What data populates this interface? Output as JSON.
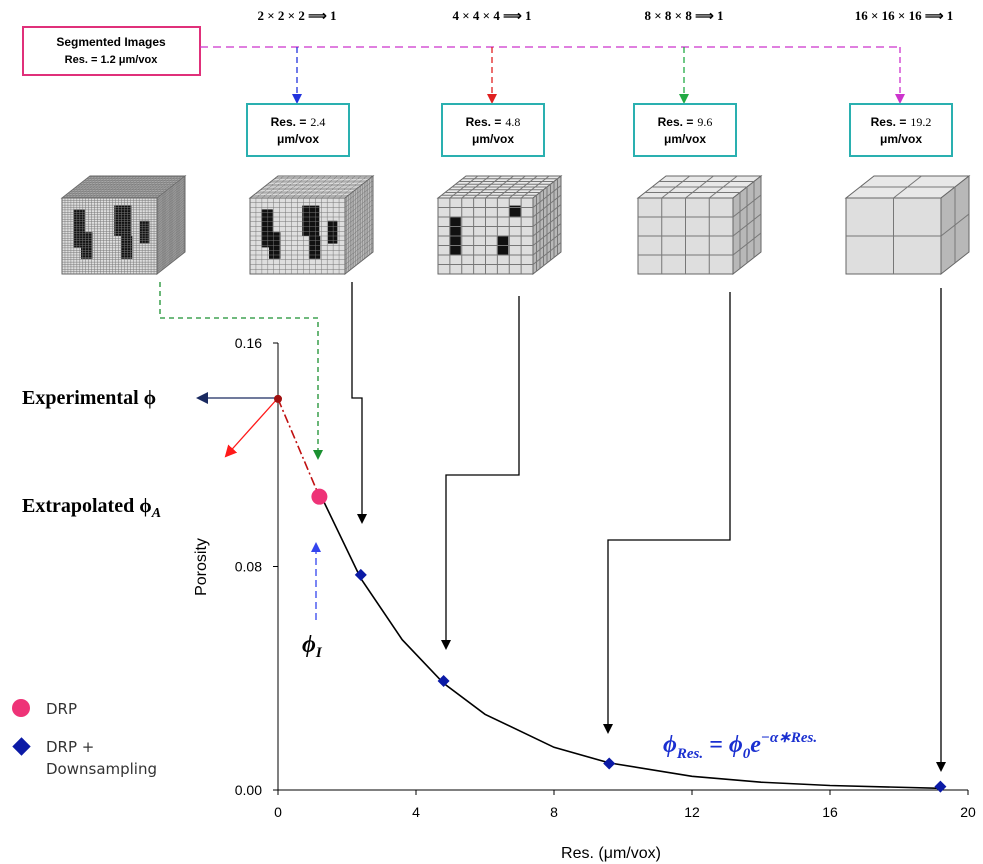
{
  "diagram": {
    "source": {
      "title": "Segmented Images",
      "res": "Res. = 1.2 μm/vox",
      "color": "#e0307a"
    },
    "stages": [
      {
        "factor": "2 × 2 × 2 ⟹ 1",
        "res_label": "Res. =",
        "res": "2.4",
        "unit": "μm/vox",
        "color": "#2233dd"
      },
      {
        "factor": "4 × 4 × 4 ⟹ 1",
        "res_label": "Res. =",
        "res": "4.8",
        "unit": "μm/vox",
        "color": "#e02020"
      },
      {
        "factor": "8 × 8 × 8 ⟹ 1",
        "res_label": "Res. =",
        "res": "9.6",
        "unit": "μm/vox",
        "color": "#22aa44"
      },
      {
        "factor": "16 × 16 × 16 ⟹ 1",
        "res_label": "Res. =",
        "res": "19.2",
        "unit": "μm/vox",
        "color": "#cc33cc"
      }
    ]
  },
  "chart_data": {
    "type": "scatter",
    "xlabel": "Res. (μm/vox)",
    "ylabel": "Porosity",
    "xlim": [
      0,
      20
    ],
    "xticks": [
      0,
      4,
      8,
      12,
      16,
      20
    ],
    "ylim": [
      0,
      0.16
    ],
    "yticks": [
      {
        "value": 0,
        "label": "0.00"
      },
      {
        "value": 0.08,
        "label": "0.08"
      },
      {
        "value": 0.16,
        "label": "0.16"
      }
    ],
    "series": [
      {
        "name": "DRP",
        "color": "#ee3377",
        "marker": "circle",
        "x": [
          1.2
        ],
        "values": [
          0.105
        ]
      },
      {
        "name": "DRP + Downsampling",
        "color": "#0b1aa6",
        "marker": "diamond",
        "x": [
          2.4,
          4.8,
          9.6,
          19.2
        ],
        "values": [
          0.077,
          0.039,
          0.0095,
          0.0012
        ]
      }
    ],
    "fit": {
      "color": "#000000",
      "x": [
        1.2,
        2.4,
        3.6,
        4.8,
        6,
        8,
        9.6,
        12,
        14,
        16,
        19.2
      ],
      "values": [
        0.1065,
        0.0757,
        0.0538,
        0.0382,
        0.0271,
        0.0153,
        0.0097,
        0.0049,
        0.0028,
        0.0016,
        0.0006
      ]
    },
    "experimental": {
      "x": 0,
      "value": 0.14,
      "color": "#a01010"
    },
    "annotations": {
      "experimental": {
        "main": "Experimental ϕ"
      },
      "extrapolated": {
        "main": "Extrapolated ϕ",
        "sub": "A"
      },
      "image": {
        "main": "ϕ",
        "sub": "I"
      },
      "equation": {
        "lhs": "ϕ",
        "lhs_sub": "Res.",
        "eq": " = ϕ",
        "sub0": "0",
        "e": "e",
        "exp": "−α∗Res."
      }
    }
  }
}
